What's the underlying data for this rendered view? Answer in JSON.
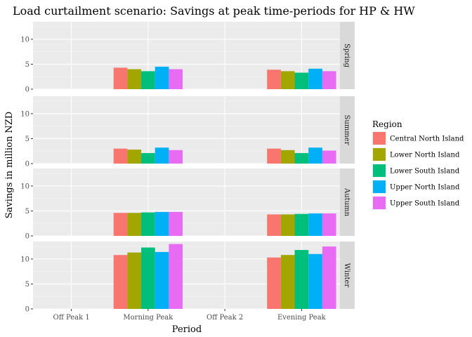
{
  "chart_data": {
    "type": "bar",
    "title": "Load curtailment scenario: Savings at peak time-periods for HP & HW",
    "xlabel": "Period",
    "ylabel": "Savings in million NZD",
    "categories": [
      "Off Peak 1",
      "Morning Peak",
      "Off Peak 2",
      "Evening Peak"
    ],
    "ylim": [
      0,
      13.5
    ],
    "yticks": [
      0,
      5,
      10
    ],
    "grid": true,
    "legend": {
      "title": "Region",
      "placement": "right",
      "entries": [
        {
          "name": "Central North Island",
          "color": "#F8766D"
        },
        {
          "name": "Lower North Island",
          "color": "#A3A500"
        },
        {
          "name": "Lower South Island",
          "color": "#00BF7D"
        },
        {
          "name": "Upper North Island",
          "color": "#00B0F6"
        },
        {
          "name": "Upper South Island",
          "color": "#E76BF3"
        }
      ]
    },
    "facets": [
      {
        "name": "Spring",
        "series": [
          {
            "name": "Central North Island",
            "values": [
              0,
              4.3,
              0,
              3.9
            ]
          },
          {
            "name": "Lower North Island",
            "values": [
              0,
              4.0,
              0,
              3.6
            ]
          },
          {
            "name": "Lower South Island",
            "values": [
              0,
              3.6,
              0,
              3.3
            ]
          },
          {
            "name": "Upper North Island",
            "values": [
              0,
              4.5,
              0,
              4.1
            ]
          },
          {
            "name": "Upper South Island",
            "values": [
              0,
              4.0,
              0,
              3.6
            ]
          }
        ]
      },
      {
        "name": "Summer",
        "series": [
          {
            "name": "Central North Island",
            "values": [
              0,
              3.0,
              0,
              3.0
            ]
          },
          {
            "name": "Lower North Island",
            "values": [
              0,
              2.8,
              0,
              2.7
            ]
          },
          {
            "name": "Lower South Island",
            "values": [
              0,
              2.1,
              0,
              2.1
            ]
          },
          {
            "name": "Upper North Island",
            "values": [
              0,
              3.2,
              0,
              3.2
            ]
          },
          {
            "name": "Upper South Island",
            "values": [
              0,
              2.7,
              0,
              2.6
            ]
          }
        ]
      },
      {
        "name": "Autumn",
        "series": [
          {
            "name": "Central North Island",
            "values": [
              0,
              4.6,
              0,
              4.3
            ]
          },
          {
            "name": "Lower North Island",
            "values": [
              0,
              4.6,
              0,
              4.3
            ]
          },
          {
            "name": "Lower South Island",
            "values": [
              0,
              4.7,
              0,
              4.4
            ]
          },
          {
            "name": "Upper North Island",
            "values": [
              0,
              4.8,
              0,
              4.5
            ]
          },
          {
            "name": "Upper South Island",
            "values": [
              0,
              4.8,
              0,
              4.5
            ]
          }
        ]
      },
      {
        "name": "Winter",
        "series": [
          {
            "name": "Central North Island",
            "values": [
              0,
              10.8,
              0,
              10.3
            ]
          },
          {
            "name": "Lower North Island",
            "values": [
              0,
              11.3,
              0,
              10.8
            ]
          },
          {
            "name": "Lower South Island",
            "values": [
              0,
              12.3,
              0,
              11.8
            ]
          },
          {
            "name": "Upper North Island",
            "values": [
              0,
              11.4,
              0,
              11.0
            ]
          },
          {
            "name": "Upper South Island",
            "values": [
              0,
              13.0,
              0,
              12.5
            ]
          }
        ]
      }
    ]
  }
}
